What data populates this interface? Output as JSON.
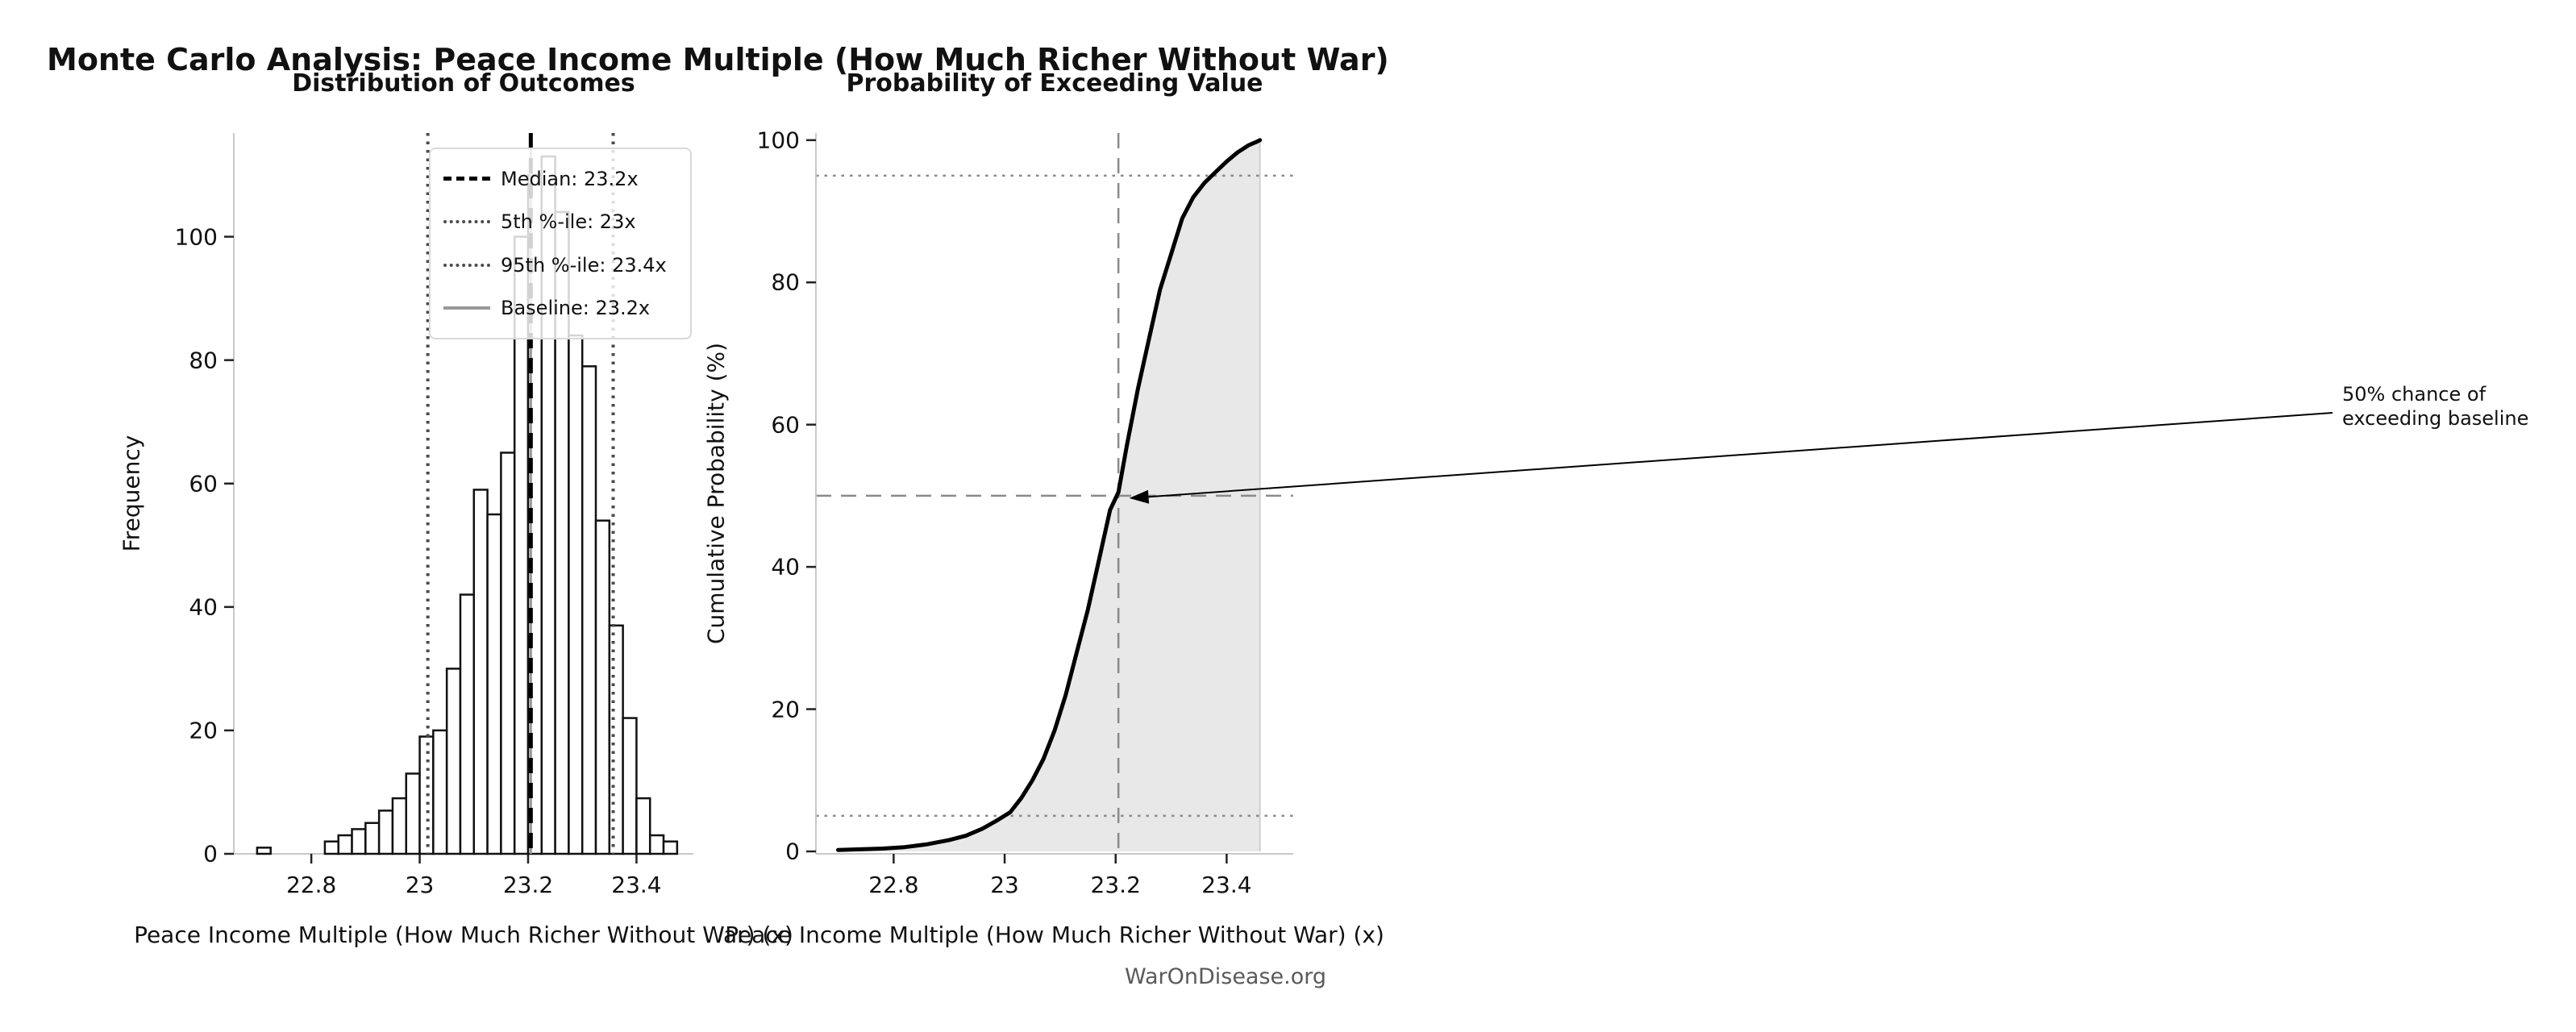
{
  "page": {
    "title": "Monte Carlo Analysis: Peace Income Multiple (How Much Richer Without War)",
    "footer": "WarOnDisease.org",
    "background": "#ffffff"
  },
  "colors": {
    "bar_fill": "#ffffff",
    "bar_edge": "#111111",
    "curve": "#000000",
    "shade": "#e8e8e8",
    "shade_edge": "#d0d0d0",
    "spine": "#c9c9c9",
    "tick": "#222222",
    "footer_text": "#5a5a5a"
  },
  "chart_data": [
    {
      "type": "bar",
      "title": "Distribution of Outcomes",
      "xlabel": "Peace Income Multiple (How Much Richer Without War) (x)",
      "ylabel": "Frequency",
      "grid": false,
      "legend_position": "upper right",
      "bins": {
        "start": 22.7,
        "width": 0.025
      },
      "frequencies": [
        1,
        0,
        0,
        0,
        0,
        2,
        3,
        4,
        5,
        7,
        9,
        13,
        19,
        20,
        30,
        42,
        59,
        55,
        65,
        100,
        110,
        113,
        104,
        84,
        79,
        54,
        37,
        22,
        9,
        3,
        2
      ],
      "xlim": [
        22.657,
        23.505
      ],
      "ylim": [
        0,
        116.8
      ],
      "x_tick_values": [
        22.8,
        23,
        23.2,
        23.4
      ],
      "x_tick_labels": [
        "22.8",
        "23",
        "23.2",
        "23.4"
      ],
      "y_tick_values": [
        0,
        20,
        40,
        60,
        80,
        100
      ],
      "y_tick_labels": [
        "0",
        "20",
        "40",
        "60",
        "80",
        "100"
      ],
      "reference_lines": [
        {
          "label": "Median: 23.2x",
          "orient": "v",
          "value": 23.205,
          "style": "dashed",
          "color": "#000000",
          "width": 5
        },
        {
          "label": "5th %-ile: 23x",
          "orient": "v",
          "value": 23.015,
          "style": "dotted",
          "color": "#4a4a4a",
          "width": 4
        },
        {
          "label": "95th %-ile: 23.4x",
          "orient": "v",
          "value": 23.357,
          "style": "dotted",
          "color": "#4a4a4a",
          "width": 4
        },
        {
          "label": "Baseline: 23.2x",
          "orient": "v",
          "value": 23.205,
          "style": "solid",
          "color": "#999999",
          "width": 3
        }
      ]
    },
    {
      "type": "line",
      "title": "Probability of Exceeding Value",
      "xlabel": "Peace Income Multiple (How Much Richer Without War) (x)",
      "ylabel": "Cumulative Probability (%)",
      "grid": false,
      "fill_under": true,
      "xlim": [
        22.66,
        23.52
      ],
      "ylim": [
        -0.34,
        101.0
      ],
      "x_tick_values": [
        22.8,
        23,
        23.2,
        23.4
      ],
      "x_tick_labels": [
        "22.8",
        "23",
        "23.2",
        "23.4"
      ],
      "y_tick_values": [
        0,
        20,
        40,
        60,
        80,
        100
      ],
      "y_tick_labels": [
        "0",
        "20",
        "40",
        "60",
        "80",
        "100"
      ],
      "points": [
        [
          22.7,
          0.2
        ],
        [
          22.74,
          0.3
        ],
        [
          22.78,
          0.4
        ],
        [
          22.82,
          0.6
        ],
        [
          22.86,
          1.0
        ],
        [
          22.9,
          1.6
        ],
        [
          22.93,
          2.2
        ],
        [
          22.96,
          3.2
        ],
        [
          22.985,
          4.3
        ],
        [
          23.01,
          5.5
        ],
        [
          23.03,
          7.5
        ],
        [
          23.05,
          10
        ],
        [
          23.07,
          13
        ],
        [
          23.09,
          17
        ],
        [
          23.11,
          22
        ],
        [
          23.13,
          28
        ],
        [
          23.15,
          34
        ],
        [
          23.17,
          41
        ],
        [
          23.19,
          48
        ],
        [
          23.205,
          50.5
        ],
        [
          23.22,
          57
        ],
        [
          23.24,
          65
        ],
        [
          23.26,
          72
        ],
        [
          23.28,
          79
        ],
        [
          23.3,
          84
        ],
        [
          23.32,
          89
        ],
        [
          23.34,
          92
        ],
        [
          23.36,
          94
        ],
        [
          23.38,
          95.5
        ],
        [
          23.4,
          97
        ],
        [
          23.42,
          98.3
        ],
        [
          23.44,
          99.3
        ],
        [
          23.455,
          99.8
        ],
        [
          23.46,
          100
        ]
      ],
      "reference_lines": [
        {
          "orient": "h",
          "value": 5,
          "style": "dotted",
          "color": "#8a8a8a",
          "width": 2.5
        },
        {
          "orient": "h",
          "value": 50,
          "style": "dashed",
          "color": "#8a8a8a",
          "width": 2.5
        },
        {
          "orient": "h",
          "value": 95,
          "style": "dotted",
          "color": "#8a8a8a",
          "width": 2.5
        },
        {
          "orient": "v",
          "value": 23.205,
          "style": "dashed",
          "color": "#8a8a8a",
          "width": 2.5
        }
      ],
      "annotation": {
        "text": [
          "50% chance of",
          "exceeding baseline"
        ],
        "point_x": 23.21,
        "point_y": 50
      }
    }
  ]
}
